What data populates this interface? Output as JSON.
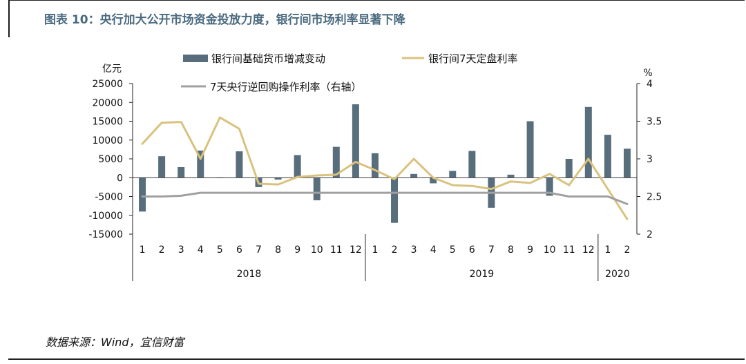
{
  "header": {
    "title": "图表 10：央行加大公开市场资金投放力度，银行间市场利率显著下降"
  },
  "footer": {
    "source": "数据来源：Wind，宜信财富"
  },
  "chart_data": {
    "type": "bar+line",
    "left_axis": {
      "unit_label": "亿元",
      "range": [
        -15000,
        25000
      ],
      "ticks": [
        25000,
        20000,
        15000,
        10000,
        5000,
        0,
        -5000,
        -10000,
        -15000
      ]
    },
    "right_axis": {
      "unit_label": "%",
      "range": [
        2,
        4
      ],
      "ticks": [
        4,
        3.5,
        3,
        2.5,
        2
      ]
    },
    "categories": [
      "1",
      "2",
      "3",
      "4",
      "5",
      "6",
      "7",
      "8",
      "9",
      "10",
      "11",
      "12",
      "1",
      "2",
      "3",
      "4",
      "5",
      "6",
      "7",
      "8",
      "9",
      "10",
      "11",
      "12",
      "1",
      "2"
    ],
    "year_groups": [
      {
        "label": "2018",
        "start": 0,
        "end": 11
      },
      {
        "label": "2019",
        "start": 12,
        "end": 23
      },
      {
        "label": "2020",
        "start": 24,
        "end": 25
      }
    ],
    "series": [
      {
        "name": "银行间基础货币增减变动",
        "kind": "bar",
        "axis": "left",
        "color": "#596e7c",
        "values": [
          -9000,
          5700,
          2800,
          7200,
          0,
          7000,
          -2500,
          -500,
          6000,
          -6000,
          8200,
          19500,
          6500,
          -12000,
          1000,
          -1500,
          1800,
          7100,
          -8000,
          800,
          15000,
          -4800,
          5000,
          18800,
          11400,
          7700
        ]
      },
      {
        "name": "银行间7天定盘利率",
        "kind": "line",
        "axis": "right",
        "color": "#d9c27e",
        "values": [
          3.2,
          3.48,
          3.49,
          3.0,
          3.55,
          3.4,
          2.67,
          2.66,
          2.76,
          2.78,
          2.79,
          2.96,
          2.85,
          2.73,
          3.0,
          2.75,
          2.65,
          2.64,
          2.6,
          2.7,
          2.68,
          2.8,
          2.65,
          3.0,
          2.6,
          2.2
        ]
      },
      {
        "name": "7天央行逆回购操作利率（右轴）",
        "kind": "line",
        "axis": "right",
        "color": "#a0a0a0",
        "values": [
          2.5,
          2.5,
          2.51,
          2.55,
          2.55,
          2.55,
          2.55,
          2.55,
          2.55,
          2.55,
          2.55,
          2.55,
          2.55,
          2.55,
          2.55,
          2.55,
          2.55,
          2.55,
          2.55,
          2.55,
          2.55,
          2.55,
          2.5,
          2.5,
          2.5,
          2.4
        ]
      }
    ],
    "legend_position": "top-center"
  }
}
